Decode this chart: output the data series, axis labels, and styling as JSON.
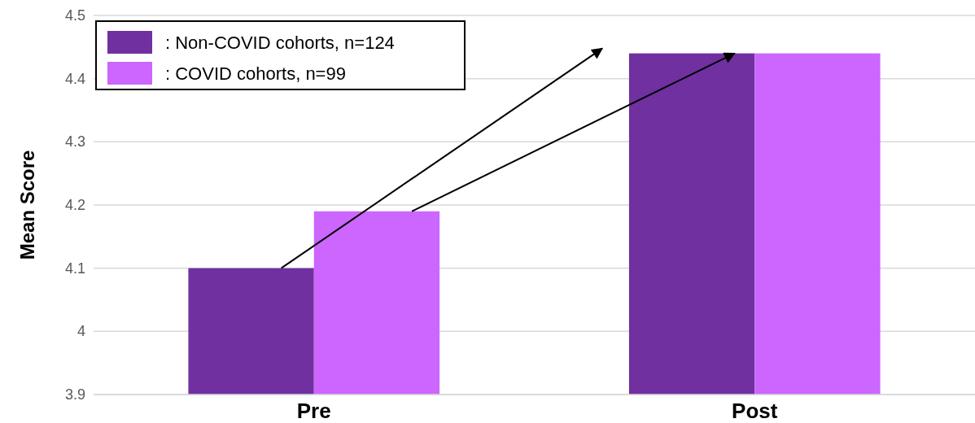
{
  "chart_data": {
    "type": "bar",
    "ylabel": "Mean Score",
    "categories": [
      "Pre",
      "Post"
    ],
    "series": [
      {
        "name": ": Non-COVID cohorts, n=124",
        "color": "#7030a0",
        "values": [
          4.1,
          4.44
        ]
      },
      {
        "name": ": COVID cohorts, n=99",
        "color": "#cc66ff",
        "values": [
          4.19,
          4.44
        ]
      }
    ],
    "ylim": [
      3.9,
      4.5
    ],
    "yticks": [
      3.9,
      4,
      4.1,
      4.2,
      4.3,
      4.4,
      4.5
    ],
    "grid": "y",
    "legend": "top left"
  }
}
